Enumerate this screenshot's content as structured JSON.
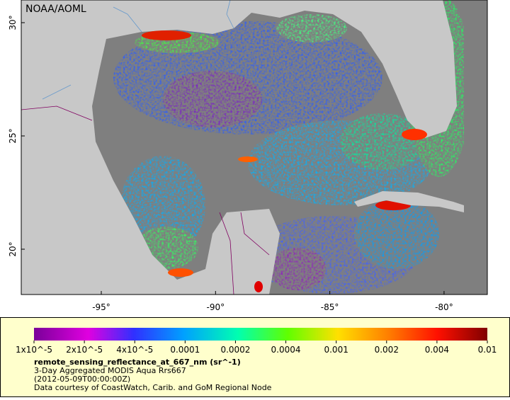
{
  "map": {
    "credit": "NOAA/AOML",
    "lat_labels": [
      "30°",
      "25°",
      "20°"
    ],
    "lon_labels": [
      "-95°",
      "-90°",
      "-85°",
      "-80°"
    ]
  },
  "legend": {
    "scale_labels": [
      "1x10^-5",
      "2x10^-5",
      "4x10^-5",
      "0.0001",
      "0.0002",
      "0.0004",
      "0.001",
      "0.002",
      "0.004",
      "0.01"
    ],
    "variable": "remote_sensing_reflectance_at_667_nm (sr^-1)",
    "lines": [
      "3-Day Aggregated MODIS Aqua Rrs667",
      "(2012-05-09T00:00:00Z)",
      "Data courtesy of CoastWatch, Carib. and GoM Regional Node"
    ]
  }
}
